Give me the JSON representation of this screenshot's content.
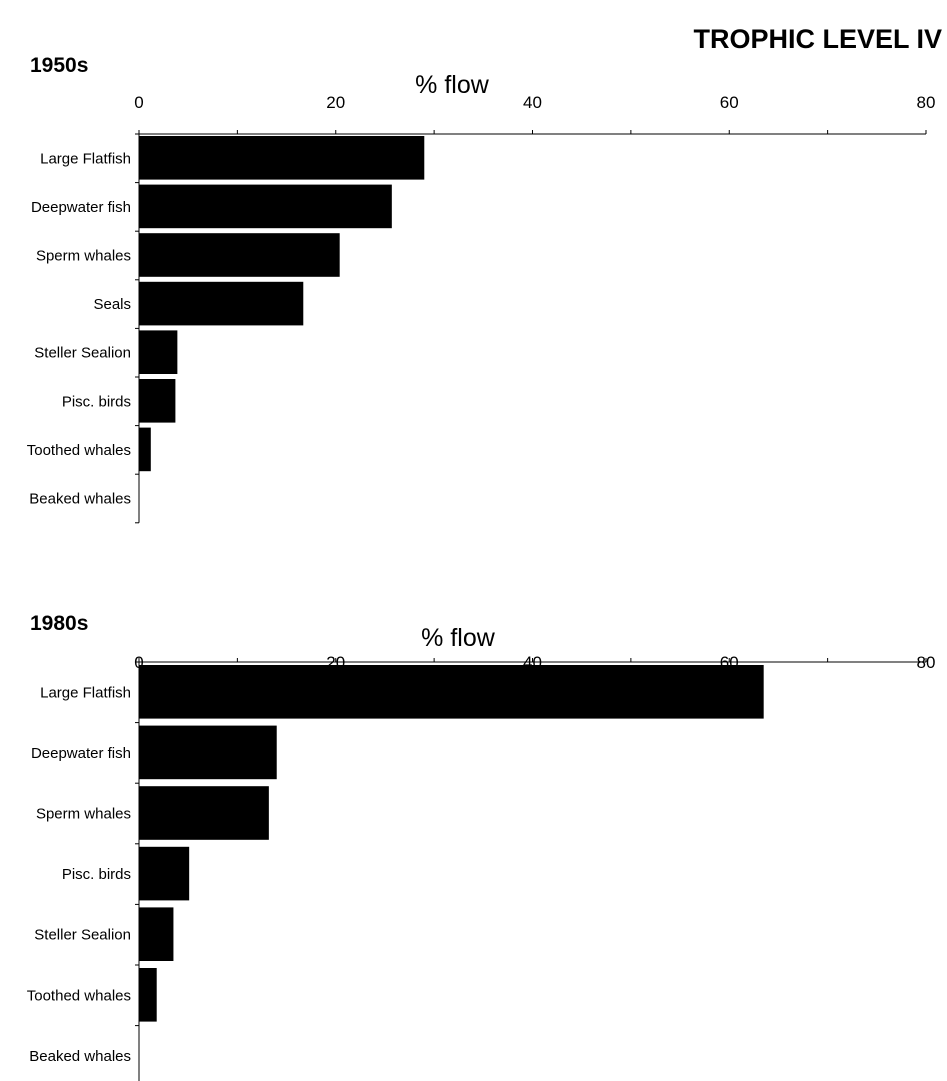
{
  "figure": {
    "title": "TROPHIC LEVEL IV"
  },
  "colors": {
    "bar": "#000000",
    "axis": "#000000",
    "background": "#ffffff"
  },
  "chart_data": [
    {
      "type": "bar",
      "orientation": "horizontal",
      "title": "1950s",
      "xlabel": "% flow",
      "ylabel": "",
      "xlim": [
        0,
        80
      ],
      "xticks": [
        "0",
        "20",
        "40",
        "60",
        "80"
      ],
      "grid": false,
      "categories": [
        "Large Flatfish",
        "Deepwater fish",
        "Sperm whales",
        "Seals",
        "Steller Sealion",
        "Pisc. birds",
        "Toothed whales",
        "Beaked whales"
      ],
      "values": [
        29,
        25.7,
        20.4,
        16.7,
        3.9,
        3.7,
        1.2,
        0
      ]
    },
    {
      "type": "bar",
      "orientation": "horizontal",
      "title": "1980s",
      "xlabel": "% flow",
      "ylabel": "",
      "xlim": [
        0,
        80
      ],
      "xticks": [
        "0",
        "20",
        "40",
        "60",
        "80"
      ],
      "grid": false,
      "categories": [
        "Large Flatfish",
        "Deepwater fish",
        "Sperm whales",
        "Pisc. birds",
        "Steller Sealion",
        "Toothed whales",
        "Beaked whales"
      ],
      "values": [
        63.5,
        14,
        13.2,
        5.1,
        3.5,
        1.8,
        0
      ]
    }
  ]
}
